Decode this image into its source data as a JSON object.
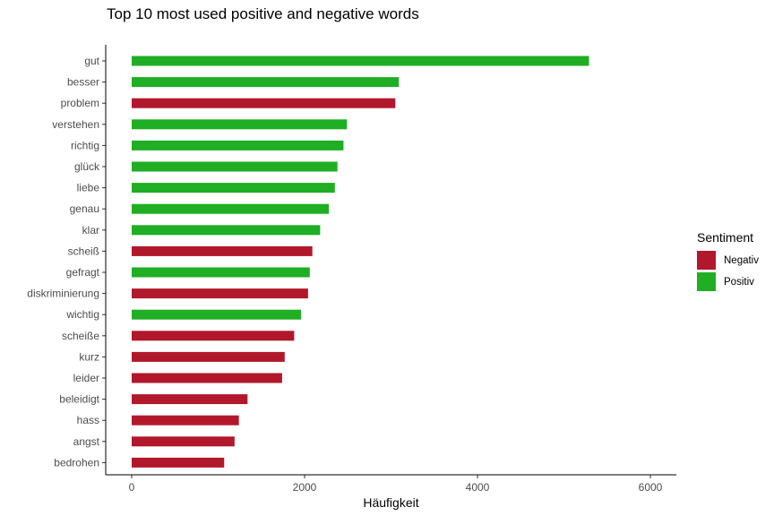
{
  "chart_data": {
    "type": "bar",
    "orientation": "horizontal",
    "title": "Top 10 most used positive and negative words",
    "xlabel": "Häufigkeit",
    "ylabel": "",
    "xlim": [
      0,
      6300
    ],
    "xticks": [
      0,
      2000,
      4000,
      6000
    ],
    "grid": false,
    "legend_position": "right",
    "legend_title": "Sentiment",
    "series": [
      {
        "name": "Negativ",
        "color": "#b2182b"
      },
      {
        "name": "Positiv",
        "color": "#1fae24"
      }
    ],
    "categories": [
      "gut",
      "besser",
      "problem",
      "verstehen",
      "richtig",
      "glück",
      "liebe",
      "genau",
      "klar",
      "scheiß",
      "gefragt",
      "diskriminierung",
      "wichtig",
      "scheiße",
      "kurz",
      "leider",
      "beleidigt",
      "hass",
      "angst",
      "bedrohen"
    ],
    "values": [
      5290,
      3090,
      3050,
      2490,
      2450,
      2380,
      2350,
      2280,
      2180,
      2090,
      2060,
      2040,
      1960,
      1880,
      1770,
      1740,
      1340,
      1240,
      1190,
      1070
    ],
    "sentiment": [
      "Positiv",
      "Positiv",
      "Negativ",
      "Positiv",
      "Positiv",
      "Positiv",
      "Positiv",
      "Positiv",
      "Positiv",
      "Negativ",
      "Positiv",
      "Negativ",
      "Positiv",
      "Negativ",
      "Negativ",
      "Negativ",
      "Negativ",
      "Negativ",
      "Negativ",
      "Negativ"
    ]
  }
}
